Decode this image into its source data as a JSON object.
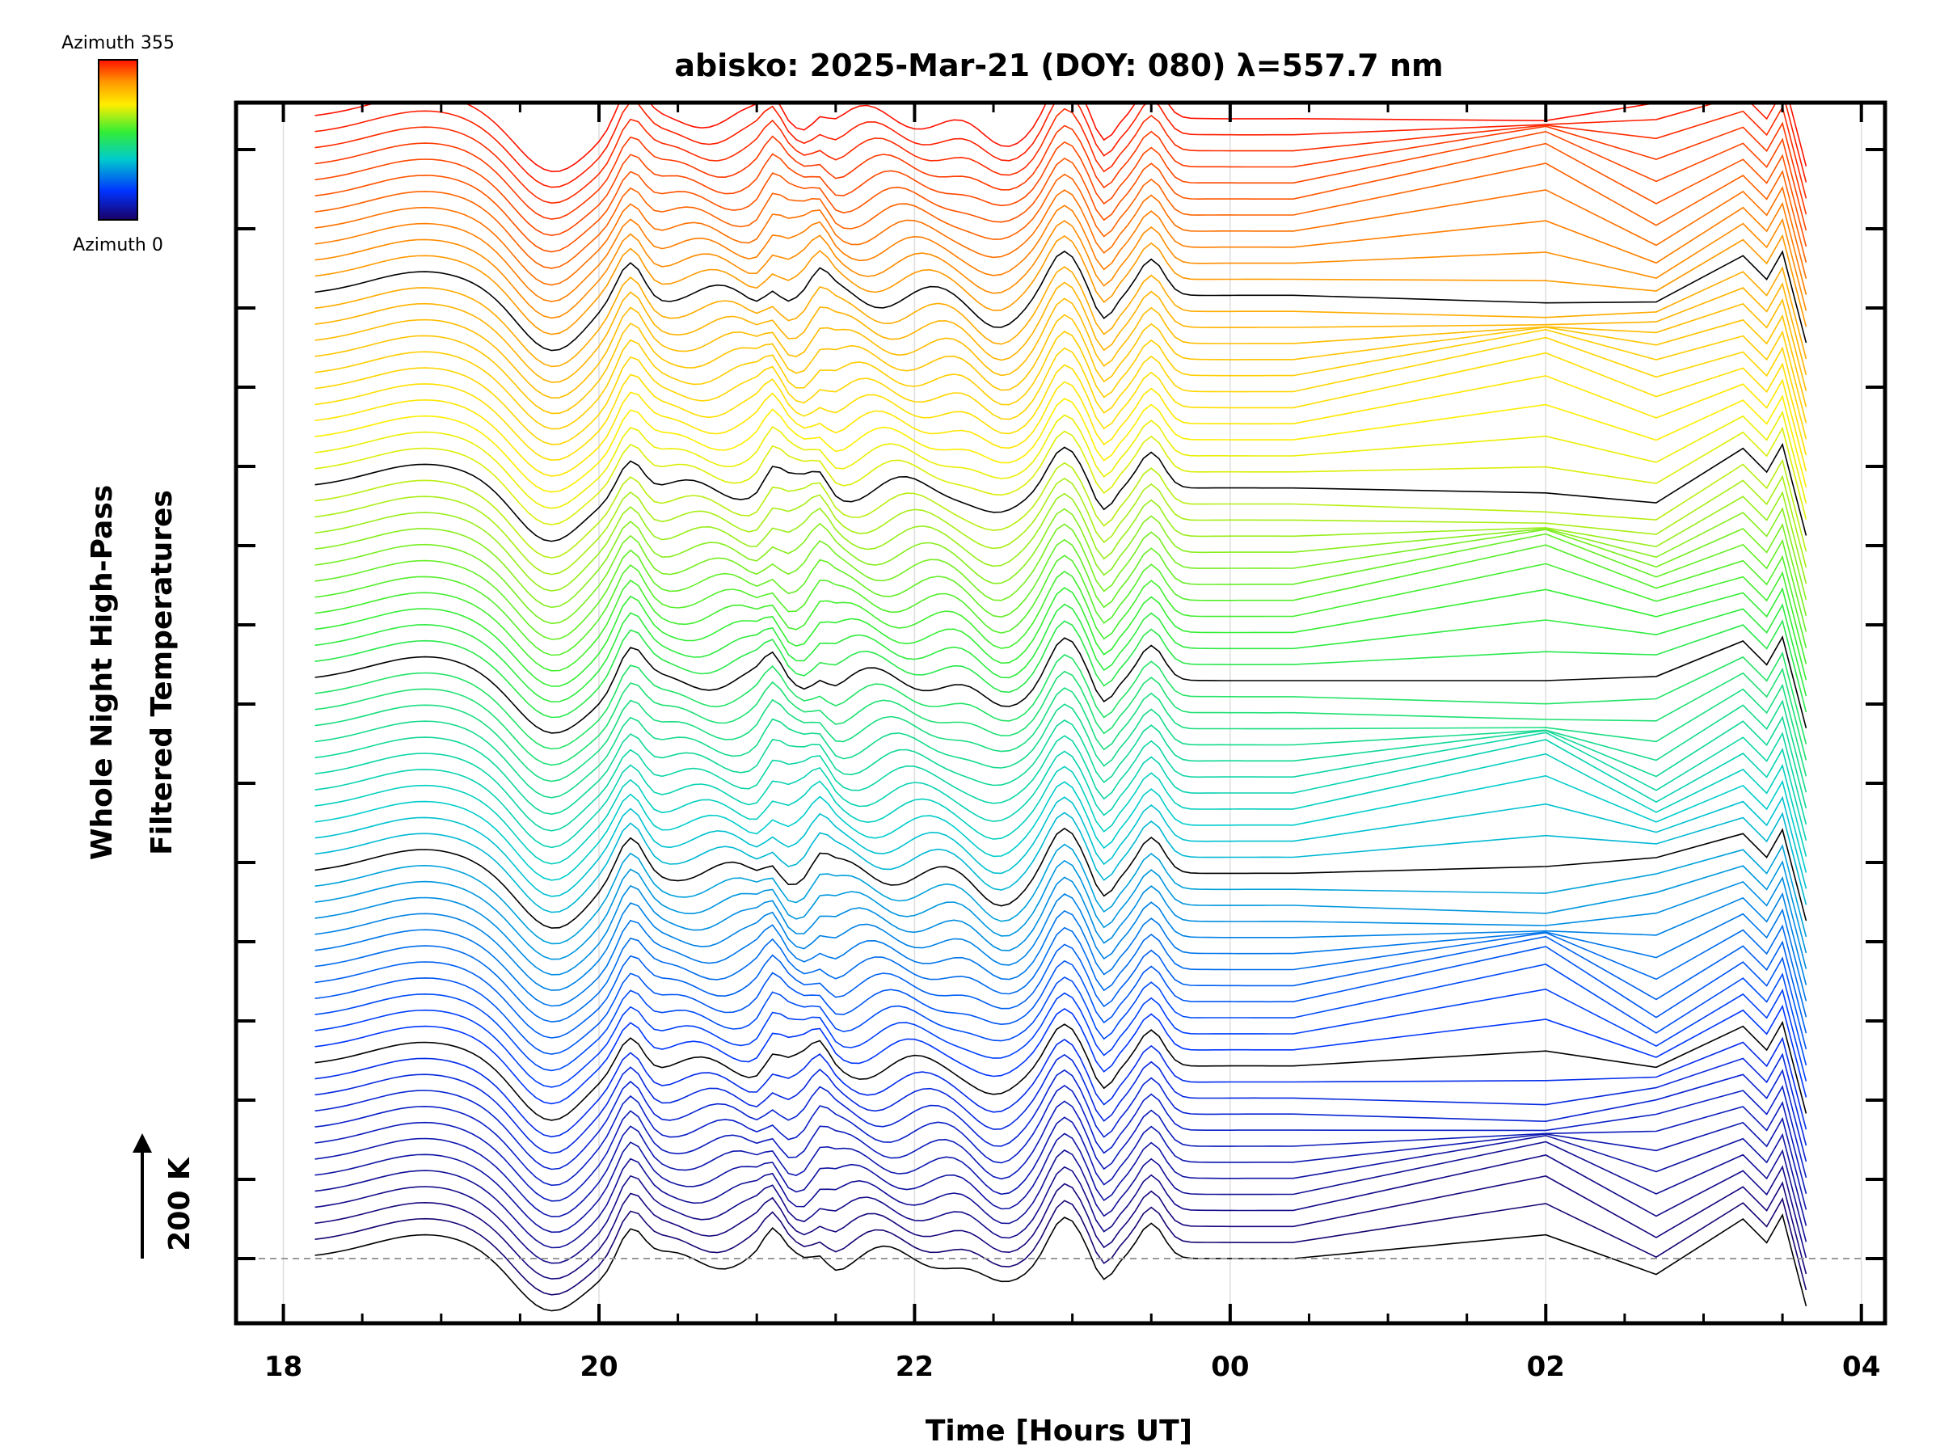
{
  "chart_data": {
    "type": "line",
    "title": "abisko: 2025-Mar-21 (DOY: 080) λ=557.7 nm",
    "xlabel": "Time [Hours UT]",
    "ylabel_line1": "Whole Night High-Pass",
    "ylabel_line2": "Filtered Temperatures",
    "x_tick_labels": [
      "18",
      "20",
      "22",
      "00",
      "02",
      "04"
    ],
    "x_tick_hours": [
      18,
      20,
      22,
      24,
      26,
      28
    ],
    "xlim_hours": [
      17.7,
      28.15
    ],
    "scale_bar": {
      "label": "200 K",
      "value_K": 200
    },
    "colorbar": {
      "top_label": "Azimuth 355",
      "bottom_label": "Azimuth 0",
      "min": 0,
      "max": 355,
      "colormap": "rainbow"
    },
    "grid": true,
    "series_description": {
      "count": 72,
      "azimuth_step_deg": 5,
      "vertical_offset_per_series_K": 100,
      "data_time_range_hours": [
        18.2,
        27.65
      ],
      "gap_hours": [
        24.4,
        26.0
      ]
    }
  }
}
